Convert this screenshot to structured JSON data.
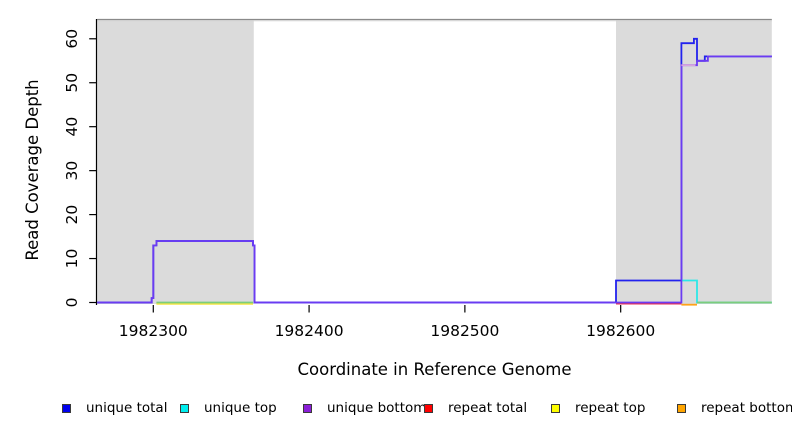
{
  "chart_data": {
    "type": "step-line",
    "title": "",
    "xlabel": "Coordinate in Reference Genome",
    "ylabel": "Read Coverage Depth",
    "xlim": [
      1982264,
      1982697
    ],
    "ylim": [
      -0.57,
      64.5
    ],
    "x_ticks": [
      1982300,
      1982400,
      1982500,
      1982600
    ],
    "y_ticks": [
      0,
      10,
      20,
      30,
      40,
      50,
      60
    ],
    "grid": false,
    "plot_background": "#ffffff",
    "shaded_region_fill": "#dbdbdb",
    "region_top_border_colors": [
      "#8a8a8a",
      "#d3d3d3"
    ],
    "shaded_regions": [
      {
        "x1": 1982264,
        "x2": 1982364.5
      },
      {
        "x1": 1982597,
        "x2": 1982697
      }
    ],
    "series": [
      {
        "name": "repeat total baseline",
        "color": "#e83252",
        "points": [
          [
            1982597,
            -0.25
          ],
          [
            1982639,
            -0.25
          ]
        ]
      },
      {
        "name": "repeat top baseline",
        "color": "#f5e642",
        "points": [
          [
            1982302,
            -0.3
          ],
          [
            1982364,
            -0.3
          ]
        ]
      },
      {
        "name": "repeat bottom baseline",
        "color": "#ffa319",
        "points": [
          [
            1982639,
            -0.5
          ],
          [
            1982649,
            -0.5
          ]
        ]
      },
      {
        "name": "unique total",
        "color": "#2222ee",
        "points": [
          [
            1982264,
            0
          ],
          [
            1982299,
            1
          ],
          [
            1982300,
            13
          ],
          [
            1982302,
            14
          ],
          [
            1982364,
            13
          ],
          [
            1982365,
            0
          ],
          [
            1982597,
            5
          ],
          [
            1982639,
            59
          ],
          [
            1982647,
            60
          ],
          [
            1982649,
            55
          ],
          [
            1982654,
            56
          ],
          [
            1982697,
            56
          ]
        ]
      },
      {
        "name": "unique top",
        "color": "#2ee8e8",
        "points": [
          [
            1982639,
            5
          ],
          [
            1982649,
            0
          ],
          [
            1982697,
            0
          ]
        ]
      },
      {
        "name": "unique bottom",
        "color": "#6b3bf2",
        "points": [
          [
            1982264,
            0
          ],
          [
            1982299,
            1
          ],
          [
            1982300,
            13
          ],
          [
            1982302,
            14
          ],
          [
            1982364,
            13
          ],
          [
            1982365,
            0
          ],
          [
            1982639,
            54
          ],
          [
            1982649,
            55
          ],
          [
            1982656,
            56
          ],
          [
            1982697,
            56
          ]
        ]
      },
      {
        "name": "unique bottom light shelf",
        "color": "#d9a6df",
        "points": [
          [
            1982639,
            54
          ],
          [
            1982648,
            54
          ]
        ]
      },
      {
        "name": "green baseline left",
        "color": "#7ccd7c",
        "points": [
          [
            1982302,
            0
          ],
          [
            1982364,
            0
          ]
        ]
      },
      {
        "name": "green baseline right",
        "color": "#7ccd7c",
        "points": [
          [
            1982649,
            0
          ],
          [
            1982697,
            0
          ]
        ]
      }
    ],
    "legend": {
      "position": "bottom",
      "entries": [
        {
          "label": "unique total",
          "fill": "#0000ee"
        },
        {
          "label": "unique top",
          "fill": "#00eeee"
        },
        {
          "label": "unique bottom",
          "fill": "#8b1fd8"
        },
        {
          "label": "repeat total",
          "fill": "#ff0000"
        },
        {
          "label": "repeat top",
          "fill": "#ffff00"
        },
        {
          "label": "repeat bottom",
          "fill": "#ffa500"
        }
      ]
    }
  }
}
